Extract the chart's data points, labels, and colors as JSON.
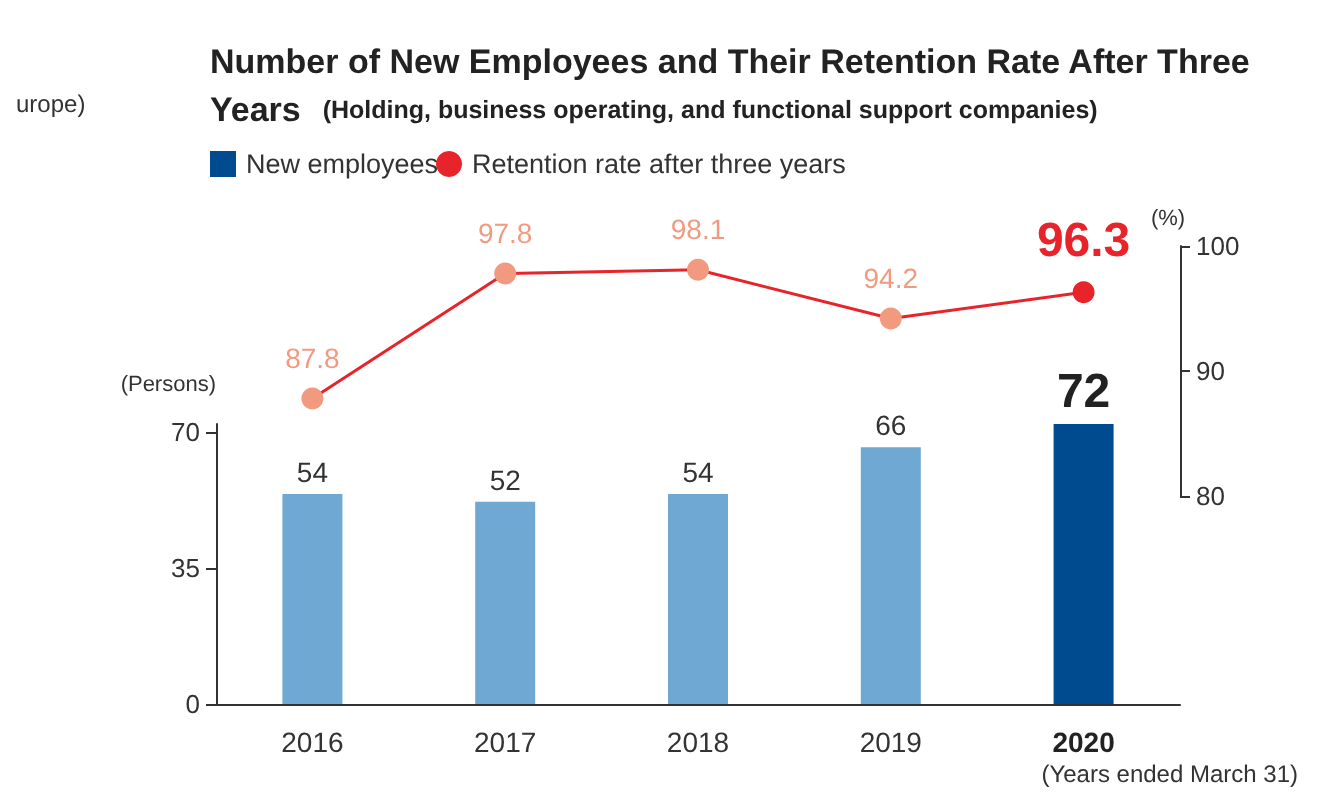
{
  "chart_data": [
    {
      "type": "line",
      "title": "Number of New Employees and Their Retention Rate After Three Years",
      "subtitle": "(Holding, business operating, and functional support companies)",
      "ylabel": "(%)",
      "categories": [
        "2016",
        "2017",
        "2018",
        "2019",
        "2020"
      ],
      "series": [
        {
          "name": "Retention rate after three years",
          "color": "#e8242b",
          "colors": [
            "#f29a80",
            "#f29a80",
            "#f29a80",
            "#f29a80",
            "#e8242b"
          ],
          "values": [
            87.8,
            97.8,
            98.1,
            94.2,
            96.3
          ]
        }
      ],
      "ylim": [
        80,
        100
      ],
      "yticks": [
        80,
        90,
        100
      ],
      "tick_labels": "y",
      "data_labels": true,
      "legend": "top left",
      "marker": "circle",
      "line_style": "solid",
      "annotations": [
        "urope)"
      ]
    },
    {
      "type": "bar",
      "ylabel": "(Persons)",
      "categories": [
        "2016",
        "2017",
        "2018",
        "2019",
        "2020"
      ],
      "series": [
        {
          "name": "New employees",
          "color": "#004a8f",
          "colors": [
            "#6fa8d3",
            "#6fa8d3",
            "#6fa8d3",
            "#6fa8d3",
            "#004a8f"
          ],
          "values": [
            54,
            52,
            54,
            66,
            72
          ]
        }
      ],
      "ylim": [
        0,
        72
      ],
      "yticks": [
        0,
        35,
        70
      ],
      "data_labels": true,
      "legend": "top left",
      "annotations": [
        "(Years ended March 31)"
      ]
    }
  ]
}
